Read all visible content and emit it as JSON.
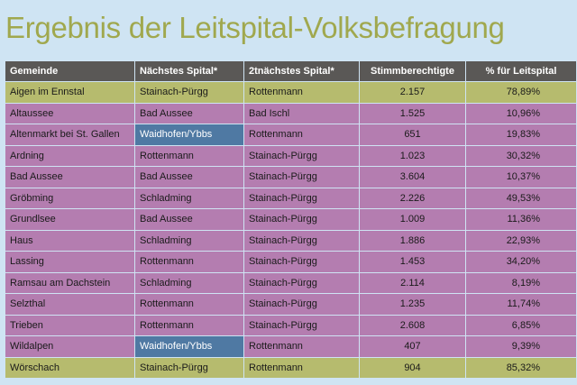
{
  "title": "Ergebnis der Leitspital-Volksbefragung",
  "colors": {
    "background": "#cfe4f3",
    "title": "#a0a84e",
    "header": "#5a5856",
    "row_default": "#b47db0",
    "row_highlight": "#b6bb6e",
    "cell_blue": "#4f79a3"
  },
  "table": {
    "headers": [
      "Gemeinde",
      "Nächstes Spital*",
      "2tnächstes Spital*",
      "Stimmberechtigte",
      "% für Leitspital"
    ],
    "rows": [
      {
        "gemeinde": "Aigen im Ennstal",
        "spital1": "Stainach-Pürgg",
        "spital2": "Rottenmann",
        "stimm": "2.157",
        "pct": "78,89%"
      },
      {
        "gemeinde": "Altaussee",
        "spital1": "Bad Aussee",
        "spital2": "Bad Ischl",
        "stimm": "1.525",
        "pct": "10,96%"
      },
      {
        "gemeinde": "Altenmarkt bei St. Gallen",
        "spital1": "Waidhofen/Ybbs",
        "spital2": "Rottenmann",
        "stimm": "651",
        "pct": "19,83%"
      },
      {
        "gemeinde": "Ardning",
        "spital1": "Rottenmann",
        "spital2": "Stainach-Pürgg",
        "stimm": "1.023",
        "pct": "30,32%"
      },
      {
        "gemeinde": "Bad Aussee",
        "spital1": "Bad Aussee",
        "spital2": "Stainach-Pürgg",
        "stimm": "3.604",
        "pct": "10,37%"
      },
      {
        "gemeinde": "Gröbming",
        "spital1": "Schladming",
        "spital2": "Stainach-Pürgg",
        "stimm": "2.226",
        "pct": "49,53%"
      },
      {
        "gemeinde": "Grundlsee",
        "spital1": "Bad Aussee",
        "spital2": "Stainach-Pürgg",
        "stimm": "1.009",
        "pct": "11,36%"
      },
      {
        "gemeinde": "Haus",
        "spital1": "Schladming",
        "spital2": "Stainach-Pürgg",
        "stimm": "1.886",
        "pct": "22,93%"
      },
      {
        "gemeinde": "Lassing",
        "spital1": "Rottenmann",
        "spital2": "Stainach-Pürgg",
        "stimm": "1.453",
        "pct": "34,20%"
      },
      {
        "gemeinde": "Ramsau am Dachstein",
        "spital1": "Schladming",
        "spital2": "Stainach-Pürgg",
        "stimm": "2.114",
        "pct": "8,19%"
      },
      {
        "gemeinde": "Selzthal",
        "spital1": "Rottenmann",
        "spital2": "Stainach-Pürgg",
        "stimm": "1.235",
        "pct": "11,74%"
      },
      {
        "gemeinde": "Trieben",
        "spital1": "Rottenmann",
        "spital2": "Stainach-Pürgg",
        "stimm": "2.608",
        "pct": "6,85%"
      },
      {
        "gemeinde": "Wildalpen",
        "spital1": "Waidhofen/Ybbs",
        "spital2": "Rottenmann",
        "stimm": "407",
        "pct": "9,39%"
      },
      {
        "gemeinde": "Wörschach",
        "spital1": "Stainach-Pürgg",
        "spital2": "Rottenmann",
        "stimm": "904",
        "pct": "85,32%"
      }
    ]
  }
}
